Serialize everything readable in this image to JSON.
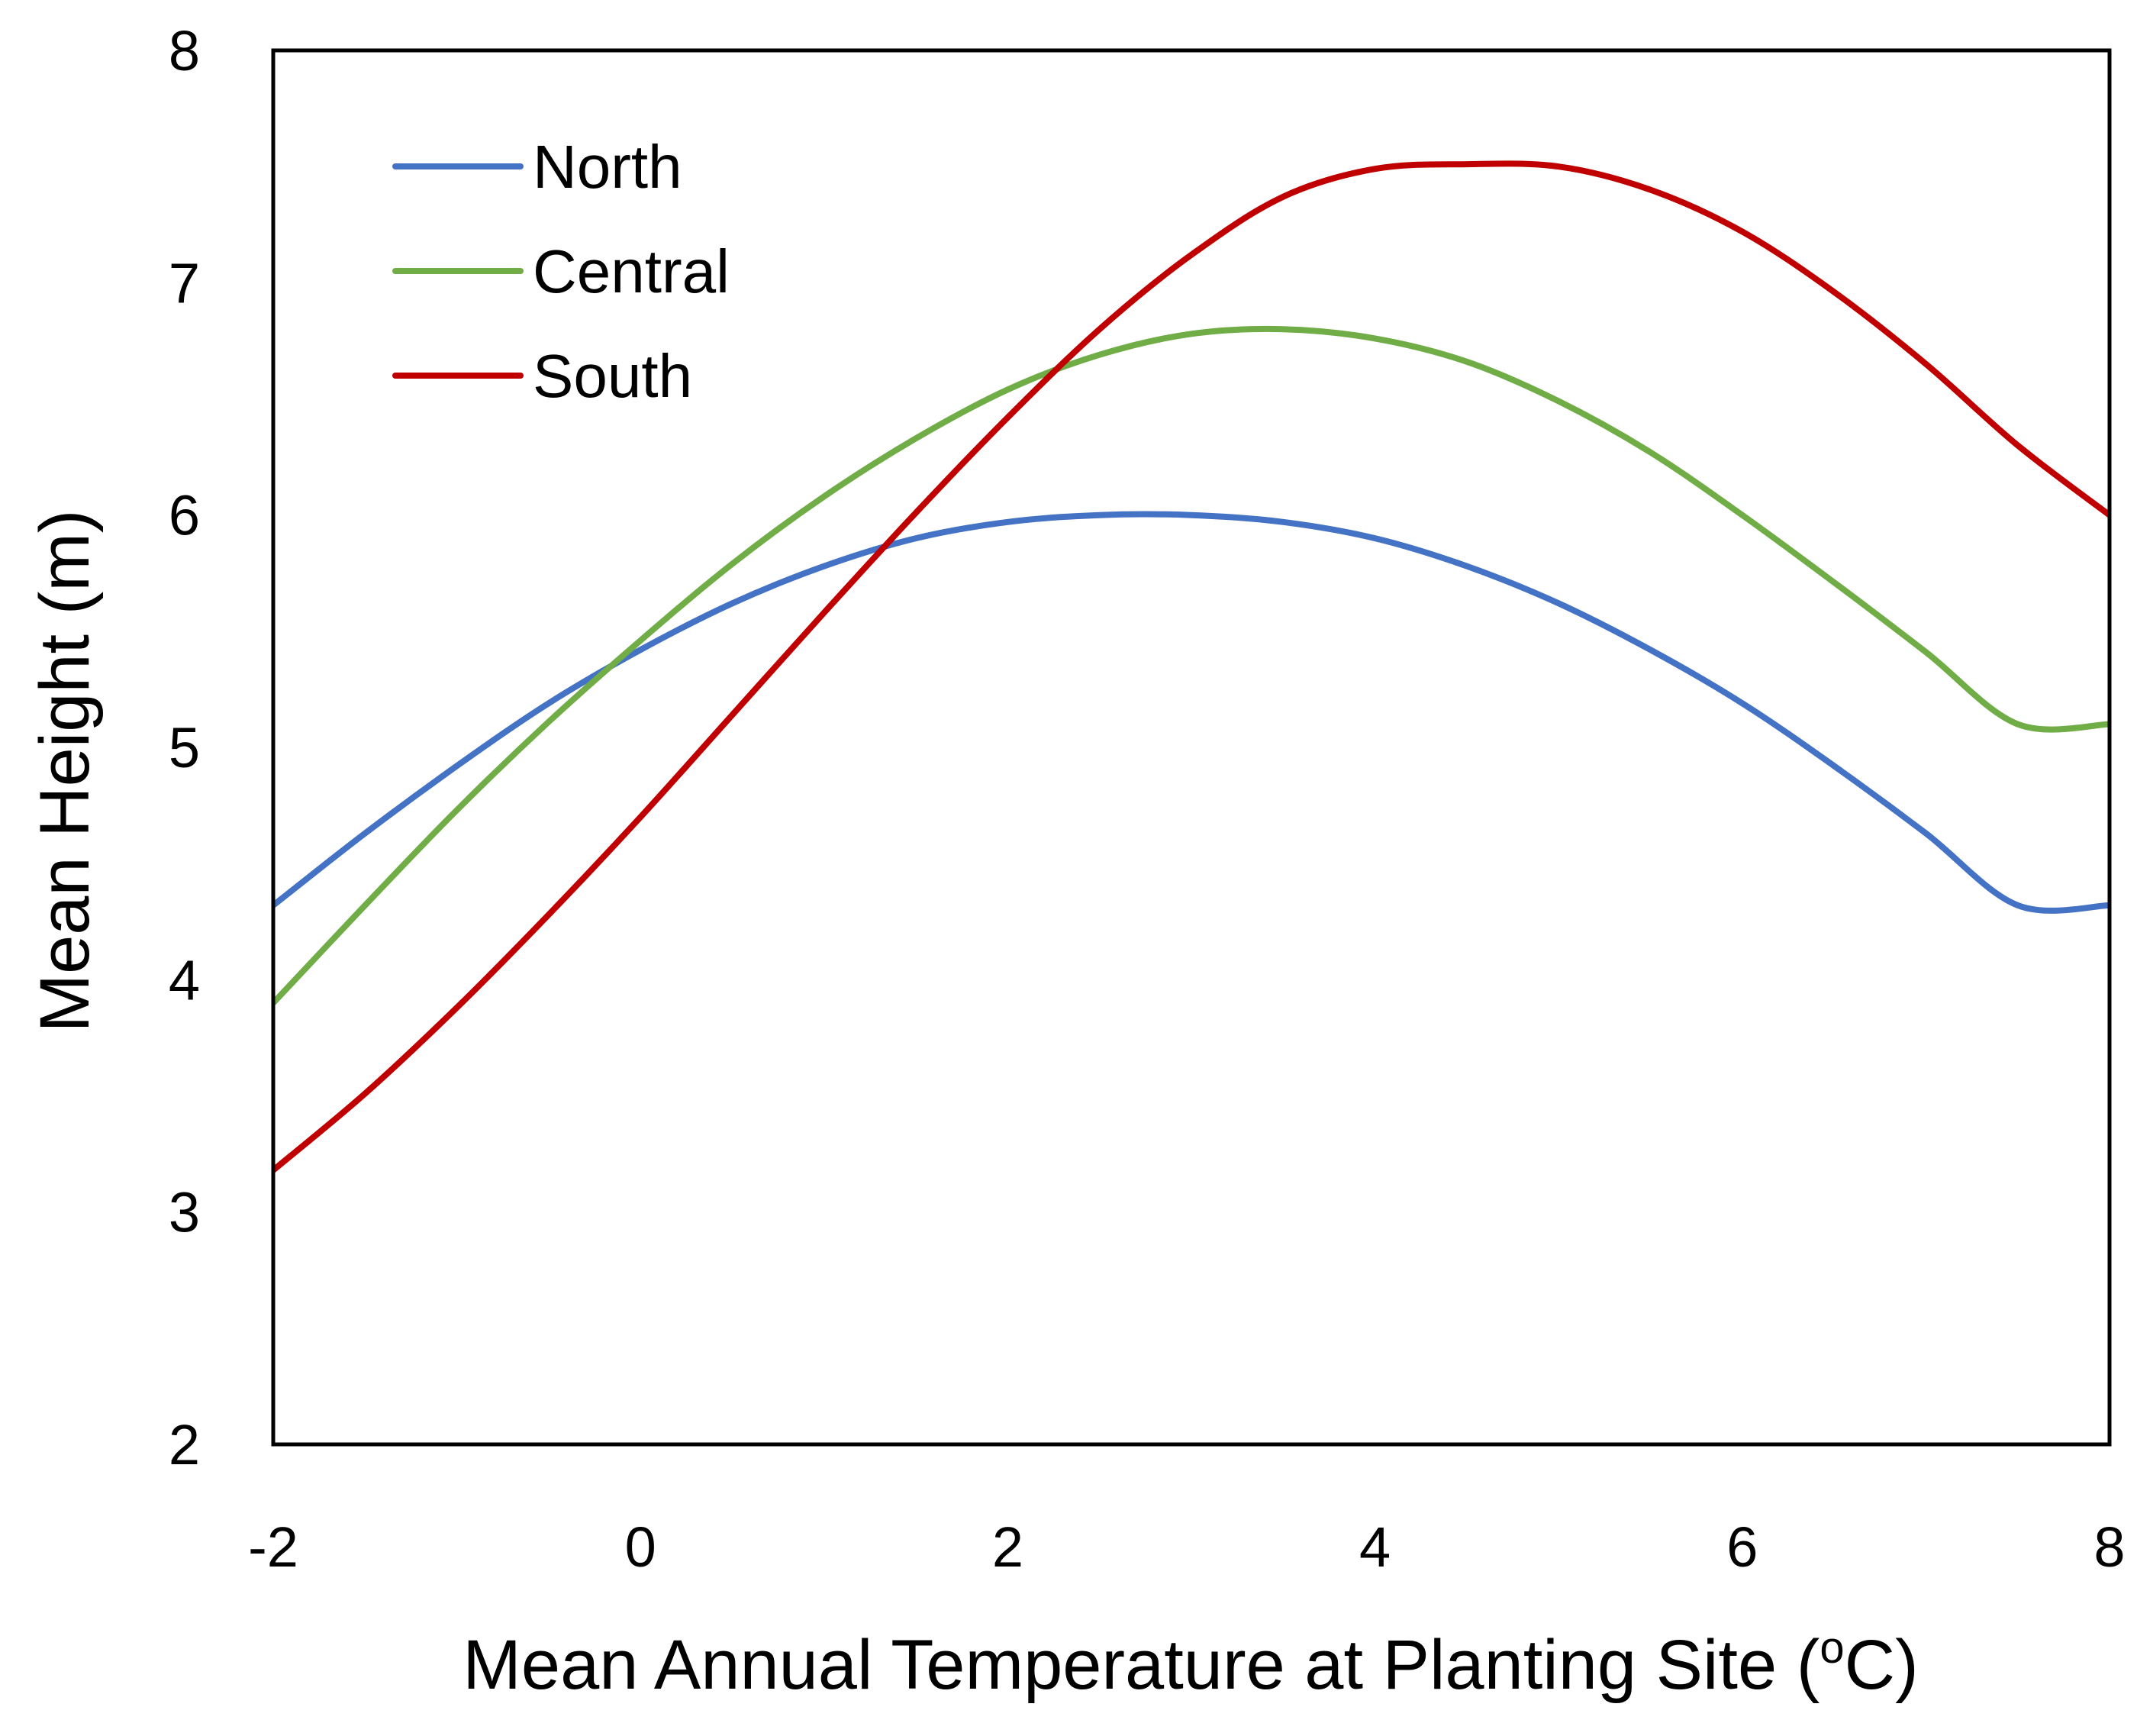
{
  "chart_data": {
    "type": "line",
    "xlabel": "Mean Annual Temperature at Planting Site (",
    "xlabel_sup": "o",
    "xlabel_end": "C)",
    "ylabel": "Mean Height (m)",
    "xlim": [
      -2,
      8
    ],
    "ylim": [
      2,
      8
    ],
    "xticks": [
      -2,
      0,
      2,
      4,
      6,
      8
    ],
    "yticks": [
      2,
      3,
      4,
      5,
      6,
      7,
      8
    ],
    "grid": false,
    "legend_position": "top-left",
    "series": [
      {
        "name": "North",
        "color": "#4472C4",
        "x": [
          -2,
          -1.5,
          -1,
          -0.5,
          0,
          0.5,
          1,
          1.5,
          2,
          2.5,
          3,
          3.5,
          4,
          4.5,
          5,
          5.5,
          6,
          6.5,
          7,
          7.5,
          8
        ],
        "y": [
          4.32,
          4.63,
          4.92,
          5.19,
          5.42,
          5.62,
          5.78,
          5.9,
          5.97,
          6.0,
          6.0,
          5.97,
          5.9,
          5.78,
          5.62,
          5.42,
          5.19,
          4.92,
          4.63,
          4.32,
          4.32
        ]
      },
      {
        "name": "Central",
        "color": "#70AD47",
        "x": [
          -2,
          -1.5,
          -1,
          -0.5,
          0,
          0.5,
          1,
          1.5,
          2,
          2.5,
          3,
          3.5,
          4,
          4.5,
          5,
          5.5,
          6,
          6.5,
          7,
          7.5,
          8
        ],
        "y": [
          3.9,
          4.32,
          4.73,
          5.11,
          5.46,
          5.79,
          6.08,
          6.33,
          6.54,
          6.69,
          6.78,
          6.8,
          6.76,
          6.66,
          6.49,
          6.27,
          6.0,
          5.71,
          5.41,
          5.1,
          5.1
        ]
      },
      {
        "name": "South",
        "color": "#C00000",
        "x": [
          -2,
          -1.5,
          -1,
          -0.5,
          0,
          0.5,
          1,
          1.5,
          2,
          2.5,
          3,
          3.5,
          4,
          4.5,
          5,
          5.5,
          6,
          6.5,
          7,
          7.5,
          8
        ],
        "y": [
          3.18,
          3.51,
          3.88,
          4.28,
          4.7,
          5.14,
          5.58,
          6.01,
          6.42,
          6.8,
          7.12,
          7.37,
          7.49,
          7.51,
          7.5,
          7.4,
          7.22,
          6.96,
          6.65,
          6.3,
          6.0
        ]
      }
    ]
  }
}
